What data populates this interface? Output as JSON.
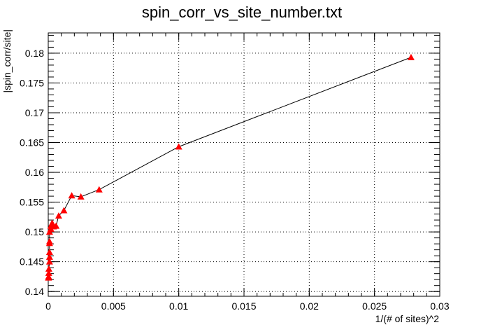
{
  "chart_data": {
    "type": "line",
    "title": "spin_corr_vs_site_number.txt",
    "xlabel": "1/(# of sites)^2",
    "ylabel": "|spin_corr/site|",
    "xlim": [
      0,
      0.03
    ],
    "ylim": [
      0.1392,
      0.1834
    ],
    "x_ticks": [
      0,
      0.005,
      0.01,
      0.015,
      0.02,
      0.025,
      0.03
    ],
    "x_tick_labels": [
      "0",
      "0.005",
      "0.01",
      "0.015",
      "0.02",
      "0.025",
      "0.03"
    ],
    "y_ticks": [
      0.14,
      0.145,
      0.15,
      0.155,
      0.16,
      0.165,
      0.17,
      0.175,
      0.18
    ],
    "y_tick_labels": [
      "0.14",
      "0.145",
      "0.15",
      "0.155",
      "0.16",
      "0.165",
      "0.17",
      "0.175",
      "0.18"
    ],
    "grid": true,
    "series": [
      {
        "marker": "triangle",
        "color": "#ff0000",
        "line_color": "#000000",
        "x": [
          0.0278,
          0.01,
          0.0039,
          0.0025,
          0.0018,
          0.0012,
          0.0008,
          0.0006,
          0.0004,
          0.0003,
          0.0002,
          0.0002,
          0.0001,
          0.0001,
          0.0001,
          0.0001,
          0.0001,
          0.0001,
          5e-05,
          4e-05,
          3e-05,
          2e-05
        ],
        "y": [
          0.1793,
          0.1643,
          0.1571,
          0.1559,
          0.1561,
          0.1536,
          0.1527,
          0.151,
          0.1509,
          0.1515,
          0.151,
          0.1505,
          0.15,
          0.1484,
          0.1481,
          0.1466,
          0.1458,
          0.145,
          0.1438,
          0.1431,
          0.1425,
          0.1423
        ]
      }
    ]
  }
}
